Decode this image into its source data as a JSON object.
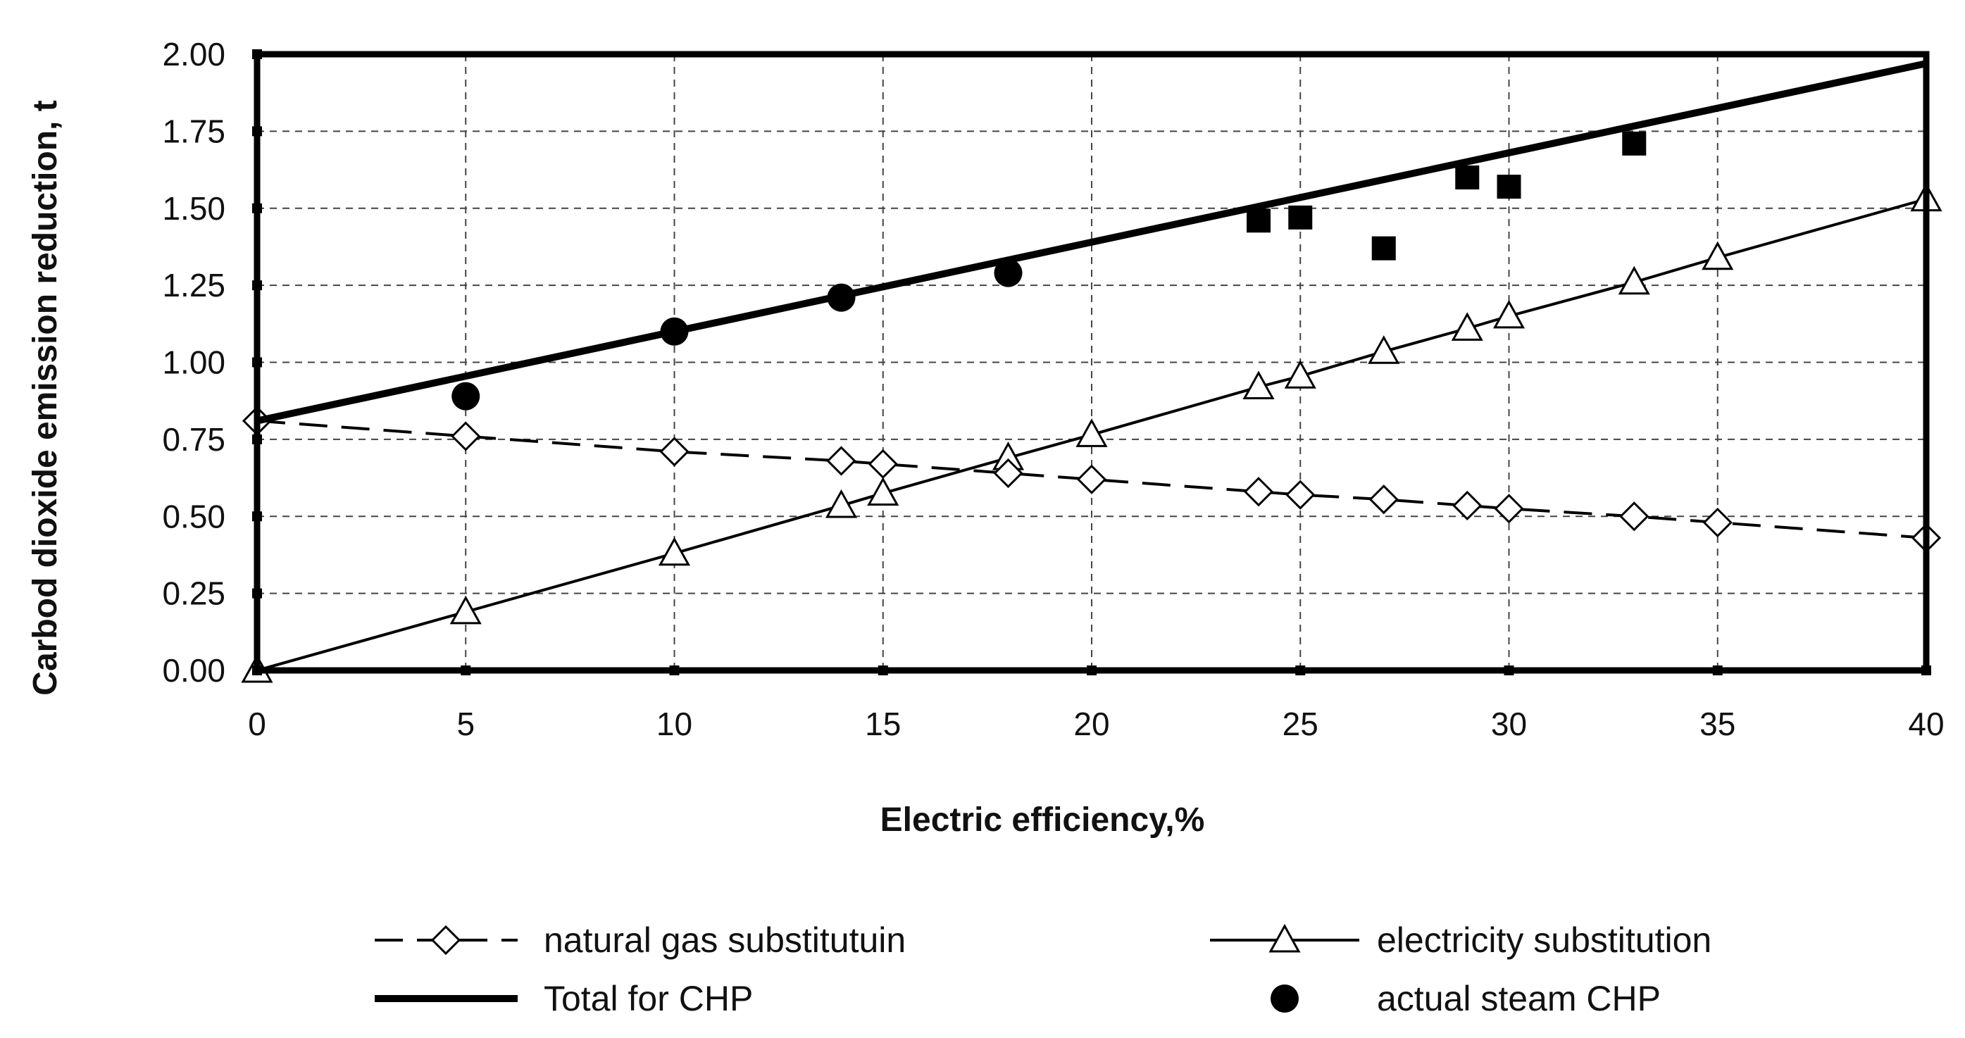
{
  "chart_data": {
    "type": "line",
    "title": "",
    "xlabel": "Electric efficiency,%",
    "ylabel": "Carbod dioxide emission reduction, t",
    "xlim": [
      0,
      40
    ],
    "ylim": [
      0,
      2
    ],
    "x_ticks": [
      0,
      5,
      10,
      15,
      20,
      25,
      30,
      35,
      40
    ],
    "y_ticks": [
      0,
      0.25,
      0.5,
      0.75,
      1.0,
      1.25,
      1.5,
      1.75,
      2.0
    ],
    "x_tick_labels": [
      "0",
      "5",
      "10",
      "15",
      "20",
      "25",
      "30",
      "35",
      "40"
    ],
    "y_tick_labels": [
      "0.00",
      "0.25",
      "0.50",
      "0.75",
      "1.00",
      "1.25",
      "1.50",
      "1.75",
      "2.00"
    ],
    "grid": true,
    "legend_position": "bottom",
    "series": [
      {
        "name": "natural gas substitutuin",
        "style": "dashed-line-diamond",
        "x": [
          0,
          5,
          10,
          14,
          15,
          18,
          20,
          24,
          25,
          27,
          29,
          30,
          33,
          35,
          40
        ],
        "y": [
          0.81,
          0.76,
          0.71,
          0.68,
          0.67,
          0.64,
          0.62,
          0.58,
          0.57,
          0.555,
          0.535,
          0.525,
          0.5,
          0.48,
          0.43
        ]
      },
      {
        "name": "electricity substitution",
        "style": "thin-line-triangle",
        "x": [
          0,
          5,
          10,
          14,
          15,
          18,
          20,
          24,
          25,
          27,
          29,
          30,
          33,
          35,
          40
        ],
        "y": [
          0,
          0.19,
          0.38,
          0.535,
          0.575,
          0.69,
          0.765,
          0.92,
          0.955,
          1.035,
          1.11,
          1.15,
          1.26,
          1.34,
          1.53
        ]
      },
      {
        "name": "Total for CHP",
        "style": "thick-line",
        "x": [
          0,
          40
        ],
        "y": [
          0.81,
          1.97
        ]
      },
      {
        "name": "actual steam CHP",
        "style": "filled-circle",
        "x": [
          5,
          10,
          14,
          18
        ],
        "y": [
          0.89,
          1.1,
          1.21,
          1.29
        ]
      },
      {
        "name": "",
        "style": "filled-square",
        "x": [
          24,
          25,
          27,
          29,
          30,
          33
        ],
        "y": [
          1.46,
          1.47,
          1.37,
          1.6,
          1.57,
          1.71
        ]
      }
    ],
    "colors": {
      "line": "#000000",
      "grid": "#444444",
      "marker_fill_open": "#ffffff",
      "background": "#ffffff"
    }
  },
  "legend": [
    {
      "label": "natural gas substitutuin",
      "key": "diamond"
    },
    {
      "label": "electricity substitution",
      "key": "triangle"
    },
    {
      "label": "Total for CHP",
      "key": "thick"
    },
    {
      "label": "actual steam CHP",
      "key": "circle"
    }
  ]
}
